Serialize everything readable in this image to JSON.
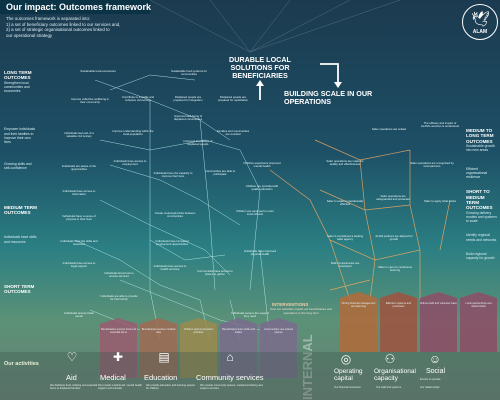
{
  "header": {
    "title": "Our impact: Outcomes framework",
    "intro": [
      "The outcomes framework is separated into:",
      "1) a set of beneficiary outcomes linked to our services and,",
      "2) a set of strategic organisational outcomes linked to",
      "our operational strategy"
    ]
  },
  "logo": {
    "text": "ALAM"
  },
  "centre": {
    "goal1": "DURABLE LOCAL SOLUTIONS FOR BENEFICIARIES",
    "goal2": "BUILDING SCALE IN OUR OPERATIONS"
  },
  "left_sidebar": [
    {
      "heading": "LONG TERM OUTCOMES",
      "text": "Strengthen local communities and economies"
    },
    {
      "heading": "",
      "text": "Empower individuals and their families to improve their own lives"
    },
    {
      "heading": "",
      "text": "Growing skills and self-confidence"
    },
    {
      "heading": "MEDIUM TERM OUTCOMES",
      "text": ""
    },
    {
      "heading": "",
      "text": "Individuals have skills and resources"
    },
    {
      "heading": "SHORT TERM OUTCOMES",
      "text": ""
    }
  ],
  "right_sidebar": [
    {
      "heading": "MEDIUM TO LONG TERM OUTCOMES",
      "text": "Sustainable growth into new areas"
    },
    {
      "heading": "",
      "text": "Efficient organisational resilience"
    },
    {
      "heading": "SHORT TO MEDIUM TERM OUTCOMES",
      "text": "Growing delivery models and systems to scale"
    },
    {
      "heading": "",
      "text": "Identify regional needs and networks"
    },
    {
      "heading": "",
      "text": "Build regional capacity for growth"
    }
  ],
  "nodes": [
    "Sustainable local economies",
    "Improve collective wellbeing in their community",
    "Sustainable food systems for communities",
    "Contribute to a stable and cohesive civil society",
    "Displaced people are prepared for integration",
    "Displaced people are prepared for repatriation",
    "Improved well-being of displaced communities",
    "Individuals feel part of a valuable civil society",
    "Improve understanding within the local population",
    "Families and communities are reunited",
    "Improved knowledge of displaced people",
    "Individuals are aware of the opportunities",
    "Individuals have access to employment",
    "Individuals have the capacity to improve their lives",
    "Individuals have access to information",
    "Communities are able to participate",
    "Children are provided with quality education",
    "Children experience improved mental health",
    "Individuals have a sense of purpose in their lives",
    "Create meaningful links between communities",
    "Individuals have the skills and resources",
    "Individuals have increased employment opportunities",
    "Children are equipped to enter local schools",
    "Individuals have access to legal support",
    "Individuals know how to access services",
    "Individuals have access to health services",
    "Communities have access to places to gather",
    "Individuals have improved physical health",
    "Individuals are able to provide for their family",
    "Individuals access basic needs",
    "Individuals receive the support they need",
    "Safer operations are scaled",
    "The efficacy and impact of ALAM's services is understood",
    "Safer operations are made for quality and effectiveness",
    "Safer operations are recognised by local partners",
    "Safer to scale is operationally effective",
    "Safer operations are safeguarded and protected",
    "Safer to apply what works",
    "Safer is considered a leading safer agency",
    "ALAM partners are aligned for growth",
    "Staff competencies are developed",
    "Safer is open to continuous learning"
  ],
  "activities": {
    "label": "Our activities",
    "items": [
      {
        "name": "Aid",
        "desc": "We distribute food, clothing and essential items to displaced families",
        "icon": "hand-heart-icon"
      },
      {
        "name": "Medical",
        "desc": "We provide medical aid, mental health support and referrals",
        "icon": "medical-kit-icon"
      },
      {
        "name": "Education",
        "desc": "We provide education and learning spaces for children",
        "icon": "book-icon"
      },
      {
        "name": "Community services",
        "desc": "We provide community spaces, vocational training and support services",
        "icon": "community-icon"
      }
    ],
    "ben_cards": [
      "Beneficiaries receive food and essential items",
      "Beneficiaries receive medical care",
      "Children attend education activities",
      "Beneficiaries learn skills and trades",
      "Communities use shared spaces"
    ]
  },
  "interventions": {
    "title": "INTERVENTIONS",
    "text": "How our activities impact our beneficiaries and operations in the long term",
    "internal_label": "INTERNAL",
    "items": [
      {
        "name": "Operating capital",
        "desc": "Our financial resources",
        "icon": "coins-icon"
      },
      {
        "name": "Organisational capacity",
        "desc": "Our staff and systems",
        "icon": "people-icon"
      },
      {
        "name": "Social",
        "sub": "licence to operate",
        "desc": "Our relationships",
        "icon": "social-icon"
      }
    ],
    "op_cards": [
      "Strong financial management and planning",
      "Effective systems and processes",
      "Robust staff and volunteer base",
      "Local partnerships and relationships"
    ]
  },
  "colors": {
    "aid": "#9a5b70",
    "medical": "#a06a54",
    "education": "#9a8a4e",
    "community": "#7c6b8e",
    "capital": "#b36a3a",
    "capacity": "#a0533f",
    "social": "#8d4d67",
    "cyan_link": "#bff0f5",
    "orange_link": "#f5ab62"
  }
}
